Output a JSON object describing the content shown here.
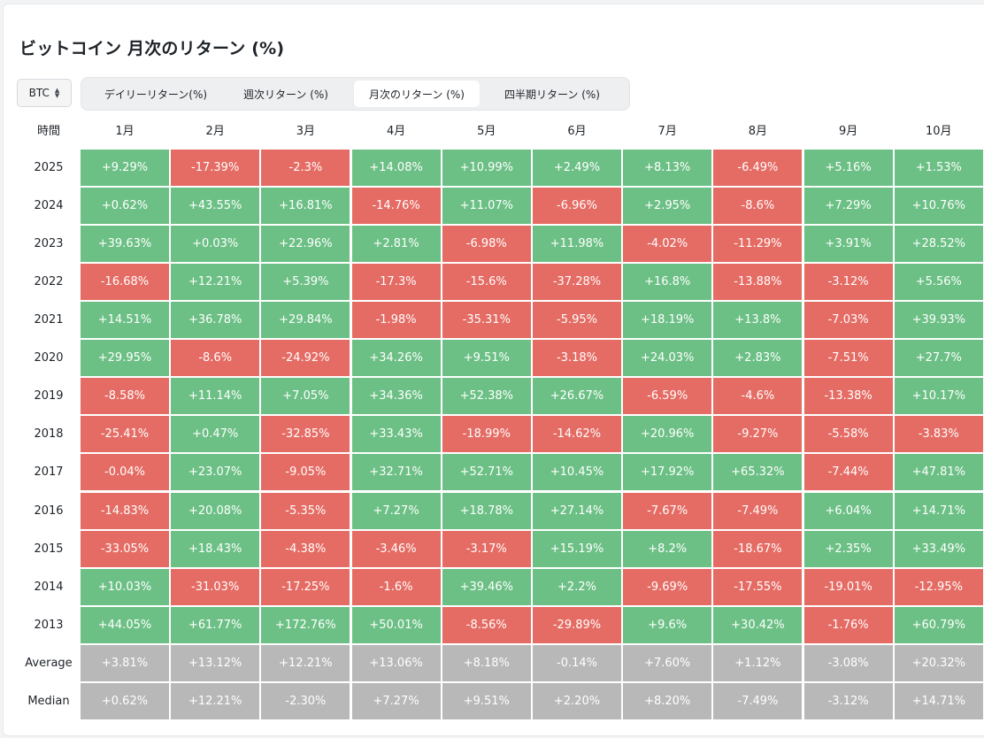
{
  "title": "ビットコイン 月次のリターン (%)",
  "asset_select": {
    "value": "BTC",
    "icon": "chevron-up-down-icon"
  },
  "tabs": [
    {
      "label": "デイリーリターン(%)",
      "active": false
    },
    {
      "label": "週次リターン (%)",
      "active": false
    },
    {
      "label": "月次のリターン (%)",
      "active": true
    },
    {
      "label": "四半期リターン (%)",
      "active": false
    }
  ],
  "colors": {
    "positive": "#6cc085",
    "negative": "#e56c64",
    "summary": "#b8b8b8"
  },
  "chart_data": {
    "type": "heatmap",
    "corner_label": "時間",
    "columns": [
      "1月",
      "2月",
      "3月",
      "4月",
      "5月",
      "6月",
      "7月",
      "8月",
      "9月",
      "10月"
    ],
    "rows": [
      {
        "label": "2025",
        "values": [
          "+9.29%",
          "-17.39%",
          "-2.3%",
          "+14.08%",
          "+10.99%",
          "+2.49%",
          "+8.13%",
          "-6.49%",
          "+5.16%",
          "+1.53%"
        ]
      },
      {
        "label": "2024",
        "values": [
          "+0.62%",
          "+43.55%",
          "+16.81%",
          "-14.76%",
          "+11.07%",
          "-6.96%",
          "+2.95%",
          "-8.6%",
          "+7.29%",
          "+10.76%"
        ]
      },
      {
        "label": "2023",
        "values": [
          "+39.63%",
          "+0.03%",
          "+22.96%",
          "+2.81%",
          "-6.98%",
          "+11.98%",
          "-4.02%",
          "-11.29%",
          "+3.91%",
          "+28.52%"
        ]
      },
      {
        "label": "2022",
        "values": [
          "-16.68%",
          "+12.21%",
          "+5.39%",
          "-17.3%",
          "-15.6%",
          "-37.28%",
          "+16.8%",
          "-13.88%",
          "-3.12%",
          "+5.56%"
        ]
      },
      {
        "label": "2021",
        "values": [
          "+14.51%",
          "+36.78%",
          "+29.84%",
          "-1.98%",
          "-35.31%",
          "-5.95%",
          "+18.19%",
          "+13.8%",
          "-7.03%",
          "+39.93%"
        ]
      },
      {
        "label": "2020",
        "values": [
          "+29.95%",
          "-8.6%",
          "-24.92%",
          "+34.26%",
          "+9.51%",
          "-3.18%",
          "+24.03%",
          "+2.83%",
          "-7.51%",
          "+27.7%"
        ]
      },
      {
        "label": "2019",
        "values": [
          "-8.58%",
          "+11.14%",
          "+7.05%",
          "+34.36%",
          "+52.38%",
          "+26.67%",
          "-6.59%",
          "-4.6%",
          "-13.38%",
          "+10.17%"
        ]
      },
      {
        "label": "2018",
        "values": [
          "-25.41%",
          "+0.47%",
          "-32.85%",
          "+33.43%",
          "-18.99%",
          "-14.62%",
          "+20.96%",
          "-9.27%",
          "-5.58%",
          "-3.83%"
        ]
      },
      {
        "label": "2017",
        "values": [
          "-0.04%",
          "+23.07%",
          "-9.05%",
          "+32.71%",
          "+52.71%",
          "+10.45%",
          "+17.92%",
          "+65.32%",
          "-7.44%",
          "+47.81%"
        ]
      },
      {
        "label": "2016",
        "values": [
          "-14.83%",
          "+20.08%",
          "-5.35%",
          "+7.27%",
          "+18.78%",
          "+27.14%",
          "-7.67%",
          "-7.49%",
          "+6.04%",
          "+14.71%"
        ]
      },
      {
        "label": "2015",
        "values": [
          "-33.05%",
          "+18.43%",
          "-4.38%",
          "-3.46%",
          "-3.17%",
          "+15.19%",
          "+8.2%",
          "-18.67%",
          "+2.35%",
          "+33.49%"
        ]
      },
      {
        "label": "2014",
        "values": [
          "+10.03%",
          "-31.03%",
          "-17.25%",
          "-1.6%",
          "+39.46%",
          "+2.2%",
          "-9.69%",
          "-17.55%",
          "-19.01%",
          "-12.95%"
        ]
      },
      {
        "label": "2013",
        "values": [
          "+44.05%",
          "+61.77%",
          "+172.76%",
          "+50.01%",
          "-8.56%",
          "-29.89%",
          "+9.6%",
          "+30.42%",
          "-1.76%",
          "+60.79%"
        ]
      }
    ],
    "summary_rows": [
      {
        "label": "Average",
        "values": [
          "+3.81%",
          "+13.12%",
          "+12.21%",
          "+13.06%",
          "+8.18%",
          "-0.14%",
          "+7.60%",
          "+1.12%",
          "-3.08%",
          "+20.32%"
        ]
      },
      {
        "label": "Median",
        "values": [
          "+0.62%",
          "+12.21%",
          "-2.30%",
          "+7.27%",
          "+9.51%",
          "+2.20%",
          "+8.20%",
          "-7.49%",
          "-3.12%",
          "+14.71%"
        ]
      }
    ]
  }
}
